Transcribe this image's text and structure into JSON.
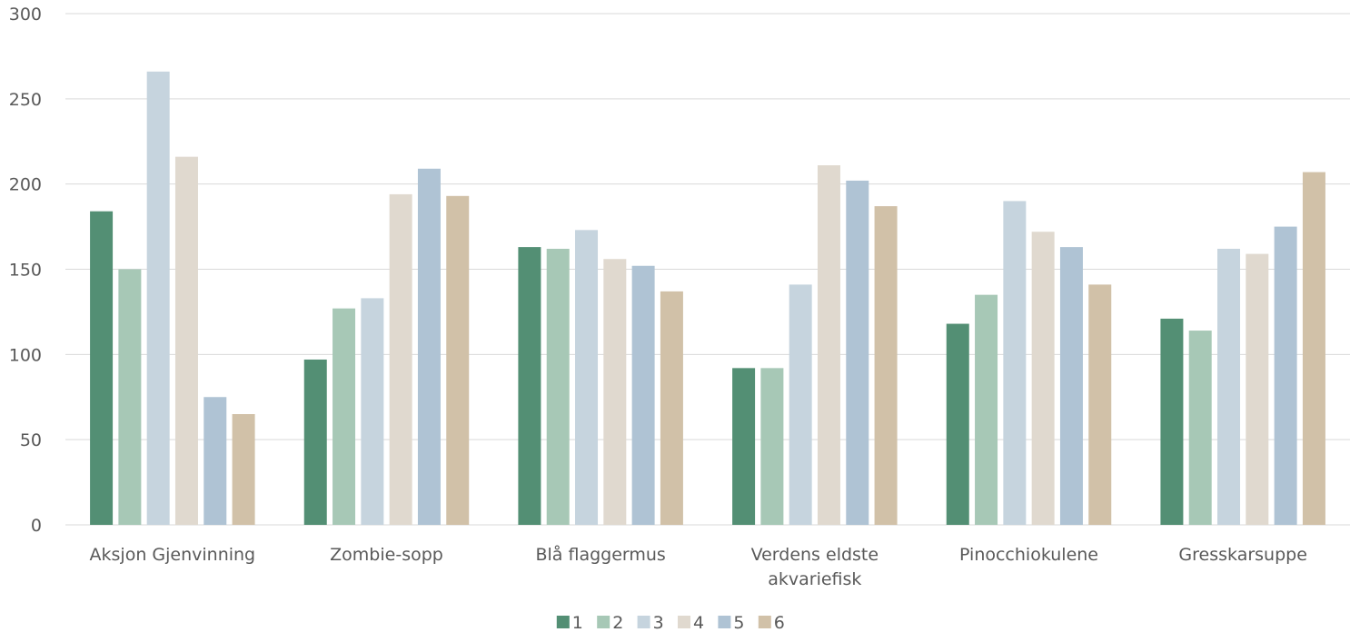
{
  "chart_data": {
    "type": "bar",
    "title": "",
    "xlabel": "",
    "ylabel": "",
    "ylim": [
      0,
      300
    ],
    "yticks": [
      0,
      50,
      100,
      150,
      200,
      250,
      300
    ],
    "grid": true,
    "legend_position": "bottom",
    "categories": [
      [
        "Aksjon Gjenvinning"
      ],
      [
        "Zombie-sopp"
      ],
      [
        "Blå flaggermus"
      ],
      [
        "Verdens eldste",
        "akvariefisk"
      ],
      [
        "Pinocchiokulene"
      ],
      [
        "Gresskarsuppe"
      ]
    ],
    "series": [
      {
        "name": "1",
        "color": "#538f74",
        "values": [
          184,
          97,
          163,
          92,
          118,
          121
        ]
      },
      {
        "name": "2",
        "color": "#a7c8b6",
        "values": [
          150,
          127,
          162,
          92,
          135,
          114
        ]
      },
      {
        "name": "3",
        "color": "#c6d4de",
        "values": [
          266,
          133,
          173,
          141,
          190,
          162
        ]
      },
      {
        "name": "4",
        "color": "#e0d9cf",
        "values": [
          216,
          194,
          156,
          211,
          172,
          159
        ]
      },
      {
        "name": "5",
        "color": "#afc3d4",
        "values": [
          75,
          209,
          152,
          202,
          163,
          175
        ]
      },
      {
        "name": "6",
        "color": "#d1c1a8",
        "values": [
          65,
          193,
          137,
          187,
          141,
          207
        ]
      }
    ]
  }
}
